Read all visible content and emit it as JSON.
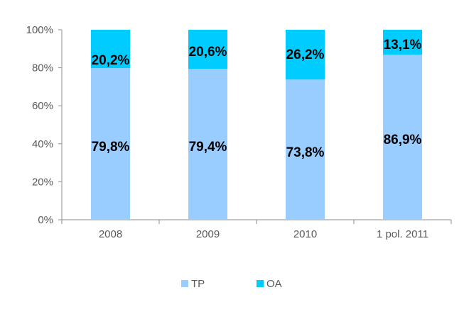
{
  "chart_data": {
    "type": "bar",
    "stacked": true,
    "percent": true,
    "categories": [
      "2008",
      "2009",
      "2010",
      "1 pol. 2011"
    ],
    "series": [
      {
        "name": "TP",
        "values": [
          79.8,
          79.4,
          73.8,
          86.9
        ],
        "labels": [
          "79,8%",
          "79,4%",
          "73,8%",
          "86,9%"
        ],
        "color": "#99ccff"
      },
      {
        "name": "OA",
        "values": [
          20.2,
          20.6,
          26.2,
          13.1
        ],
        "labels": [
          "20,2%",
          "20,6%",
          "26,2%",
          "13,1%"
        ],
        "color": "#00ccff"
      }
    ],
    "y_ticks": [
      "0%",
      "20%",
      "40%",
      "60%",
      "80%",
      "100%"
    ],
    "ylim": [
      0,
      100
    ],
    "grid": false,
    "legend_position": "bottom"
  }
}
